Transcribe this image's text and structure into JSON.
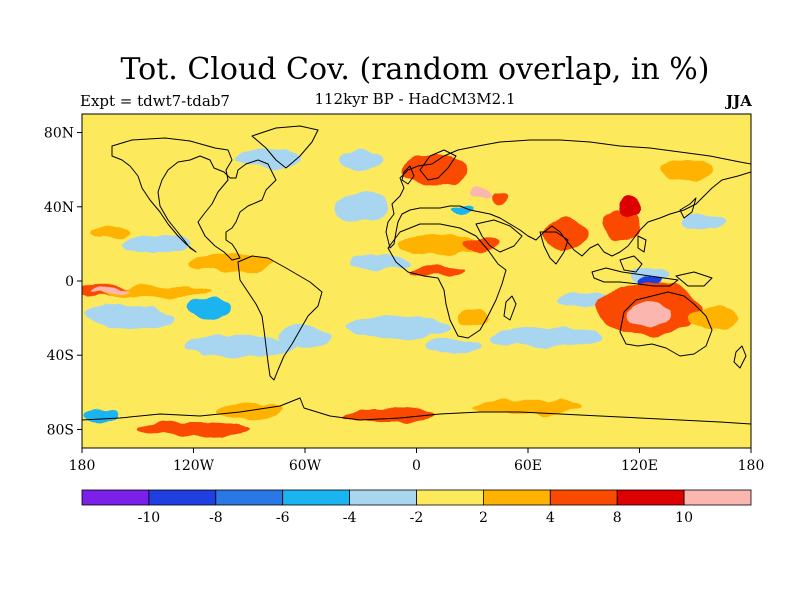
{
  "title": "Tot. Cloud Cov. (random overlap, in %)",
  "subtitle": "112kyr BP - HadCM3M2.1",
  "experiment": "Expt = tdwt7-tdab7",
  "season": "JJA",
  "map": {
    "lon_range": [
      -180,
      180
    ],
    "lat_range": [
      -90,
      90
    ],
    "lat_ticks": [
      {
        "value": 80,
        "label": "80N"
      },
      {
        "value": 40,
        "label": "40N"
      },
      {
        "value": 0,
        "label": "0"
      },
      {
        "value": -40,
        "label": "40S"
      },
      {
        "value": -80,
        "label": "80S"
      }
    ],
    "lon_ticks": [
      {
        "value": -180,
        "label": "180"
      },
      {
        "value": -120,
        "label": "120W"
      },
      {
        "value": -60,
        "label": "60W"
      },
      {
        "value": 0,
        "label": "0"
      },
      {
        "value": 60,
        "label": "60E"
      },
      {
        "value": 120,
        "label": "120E"
      },
      {
        "value": 180,
        "label": "180"
      }
    ],
    "background_color": "#fde95c",
    "anomalies": [
      {
        "lon": -168,
        "lat": -5,
        "rlon": 14,
        "rlat": 3,
        "color": "#fa4a00"
      },
      {
        "lon": -140,
        "lat": -6,
        "rlon": 30,
        "rlat": 3,
        "color": "#ffb200"
      },
      {
        "lon": -165,
        "lat": -5,
        "rlon": 10,
        "rlat": 1.5,
        "color": "#fcb6b0"
      },
      {
        "lon": -165,
        "lat": -18,
        "rlon": 14,
        "rlat": 5,
        "color": "#a8d6f0"
      },
      {
        "lon": -160,
        "lat": -18,
        "rlon": 6,
        "rlat": 3,
        "color": "#1ab4f0"
      },
      {
        "lon": -140,
        "lat": 20,
        "rlon": 18,
        "rlat": 5,
        "color": "#a8d6f0"
      },
      {
        "lon": -165,
        "lat": 26,
        "rlon": 10,
        "rlat": 3,
        "color": "#ffb200"
      },
      {
        "lon": -150,
        "lat": -20,
        "rlon": 20,
        "rlat": 6,
        "color": "#a8d6f0"
      },
      {
        "lon": -112,
        "lat": -15,
        "rlon": 12,
        "rlat": 5,
        "color": "#1ab4f0"
      },
      {
        "lon": -100,
        "lat": 10,
        "rlon": 22,
        "rlat": 5,
        "color": "#ffb200"
      },
      {
        "lon": -95,
        "lat": -35,
        "rlon": 30,
        "rlat": 6,
        "color": "#a8d6f0"
      },
      {
        "lon": -60,
        "lat": -30,
        "rlon": 14,
        "rlat": 6,
        "color": "#a8d6f0"
      },
      {
        "lon": -30,
        "lat": 40,
        "rlon": 15,
        "rlat": 8,
        "color": "#a8d6f0"
      },
      {
        "lon": -20,
        "lat": 10,
        "rlon": 16,
        "rlat": 4,
        "color": "#a8d6f0"
      },
      {
        "lon": -10,
        "lat": -25,
        "rlon": 28,
        "rlat": 6,
        "color": "#a8d6f0"
      },
      {
        "lon": 20,
        "lat": -35,
        "rlon": 15,
        "rlat": 4,
        "color": "#a8d6f0"
      },
      {
        "lon": 70,
        "lat": -30,
        "rlon": 30,
        "rlat": 5,
        "color": "#a8d6f0"
      },
      {
        "lon": 95,
        "lat": -10,
        "rlon": 18,
        "rlat": 4,
        "color": "#a8d6f0"
      },
      {
        "lon": 15,
        "lat": 20,
        "rlon": 25,
        "rlat": 5,
        "color": "#ffb200"
      },
      {
        "lon": 35,
        "lat": 20,
        "rlon": 10,
        "rlat": 4,
        "color": "#fa4a00"
      },
      {
        "lon": 10,
        "lat": 5,
        "rlon": 15,
        "rlat": 3,
        "color": "#fa4a00"
      },
      {
        "lon": 30,
        "lat": -20,
        "rlon": 8,
        "rlat": 5,
        "color": "#ffb200"
      },
      {
        "lon": 10,
        "lat": 60,
        "rlon": 18,
        "rlat": 8,
        "color": "#fa4a00"
      },
      {
        "lon": 35,
        "lat": 47,
        "rlon": 6,
        "rlat": 3,
        "color": "#fcb6b0"
      },
      {
        "lon": 45,
        "lat": 45,
        "rlon": 4,
        "rlat": 3,
        "color": "#fa4a00"
      },
      {
        "lon": 25,
        "lat": 38,
        "rlon": 6,
        "rlat": 2.5,
        "color": "#1ab4f0"
      },
      {
        "lon": 80,
        "lat": 25,
        "rlon": 12,
        "rlat": 8,
        "color": "#fa4a00"
      },
      {
        "lon": 110,
        "lat": 30,
        "rlon": 10,
        "rlat": 8,
        "color": "#fa4a00"
      },
      {
        "lon": 115,
        "lat": 40,
        "rlon": 6,
        "rlat": 6,
        "color": "#dd0000"
      },
      {
        "lon": 145,
        "lat": 60,
        "rlon": 14,
        "rlat": 6,
        "color": "#ffb200"
      },
      {
        "lon": 155,
        "lat": 32,
        "rlon": 12,
        "rlat": 4,
        "color": "#a8d6f0"
      },
      {
        "lon": 125,
        "lat": 3,
        "rlon": 10,
        "rlat": 4,
        "color": "#a8d6f0"
      },
      {
        "lon": 125,
        "lat": 0,
        "rlon": 6,
        "rlat": 2.5,
        "color": "#1f3fe0"
      },
      {
        "lon": 125,
        "lat": -15,
        "rlon": 28,
        "rlat": 14,
        "color": "#fa4a00"
      },
      {
        "lon": 125,
        "lat": -18,
        "rlon": 12,
        "rlat": 6,
        "color": "#fcb6b0"
      },
      {
        "lon": 160,
        "lat": -20,
        "rlon": 14,
        "rlat": 6,
        "color": "#ffb200"
      },
      {
        "lon": -90,
        "lat": -70,
        "rlon": 18,
        "rlat": 4,
        "color": "#ffb200"
      },
      {
        "lon": -15,
        "lat": -72,
        "rlon": 25,
        "rlat": 4,
        "color": "#fa4a00"
      },
      {
        "lon": 60,
        "lat": -68,
        "rlon": 30,
        "rlat": 4,
        "color": "#ffb200"
      },
      {
        "lon": -170,
        "lat": -72,
        "rlon": 10,
        "rlat": 4,
        "color": "#1ab4f0"
      },
      {
        "lon": -120,
        "lat": -80,
        "rlon": 30,
        "rlat": 4,
        "color": "#fa4a00"
      },
      {
        "lon": -80,
        "lat": 66,
        "rlon": 18,
        "rlat": 5,
        "color": "#a8d6f0"
      },
      {
        "lon": -30,
        "lat": 65,
        "rlon": 12,
        "rlat": 5,
        "color": "#a8d6f0"
      }
    ],
    "coastline_color": "#000000"
  },
  "colorbar": {
    "colors": [
      "#7b20e8",
      "#1f3fe0",
      "#2a78e6",
      "#1ab4f0",
      "#a8d6f0",
      "#fde95c",
      "#ffb200",
      "#fa4a00",
      "#dd0000",
      "#fcb6b0"
    ],
    "labels": [
      "-10",
      "-8",
      "-6",
      "-4",
      "-2",
      "2",
      "4",
      "8",
      "10"
    ]
  }
}
